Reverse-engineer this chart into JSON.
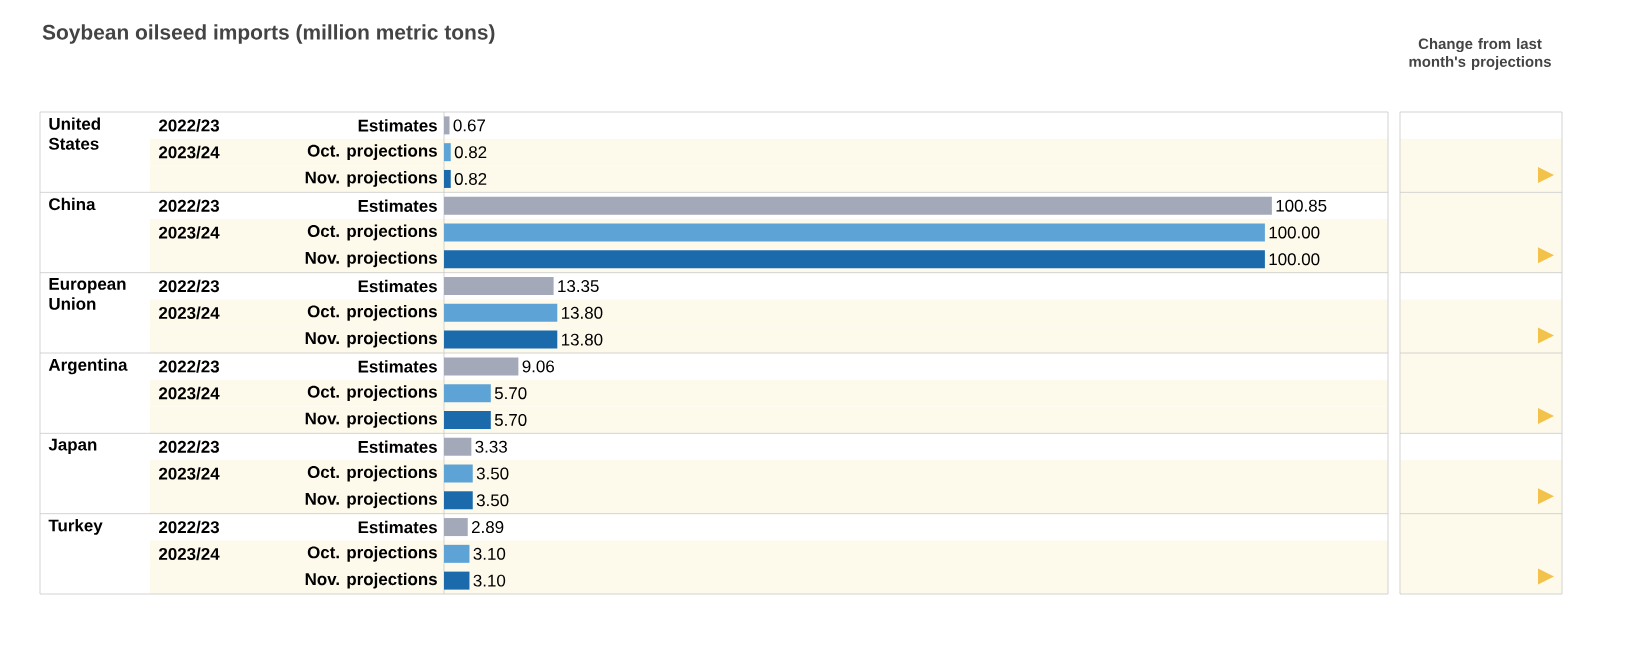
{
  "chart_data": {
    "type": "bar",
    "orientation": "horizontal",
    "title": "Soybean oilseed imports (million metric tons)",
    "categories": [
      "United States",
      "China",
      "European Union",
      "Argentina",
      "Japan",
      "Turkey"
    ],
    "series": [
      {
        "name": "Estimates",
        "color": "#a3a9b8",
        "values": [
          0.67,
          100.85,
          13.35,
          9.06,
          3.33,
          2.89
        ],
        "value_labels": [
          "0.67",
          "100.85",
          "13.35",
          "9.06",
          "3.33",
          "2.89"
        ]
      },
      {
        "name": "Oct. projections",
        "color": "#5ea3d6",
        "values": [
          0.82,
          100.0,
          13.8,
          5.7,
          3.5,
          3.1
        ],
        "value_labels": [
          "0.82",
          "100.00",
          "13.80",
          "5.70",
          "3.50",
          "3.10"
        ]
      },
      {
        "name": "Nov. projections",
        "color": "#1a6aac",
        "values": [
          0.82,
          100.0,
          13.8,
          5.7,
          3.5,
          3.1
        ],
        "value_labels": [
          "0.82",
          "100.00",
          "13.80",
          "5.70",
          "3.50",
          "3.10"
        ]
      }
    ],
    "xlim": [
      0,
      115
    ],
    "annotations": [
      "2022/23",
      "2023/24",
      "Change from last month's projections"
    ]
  }
}
